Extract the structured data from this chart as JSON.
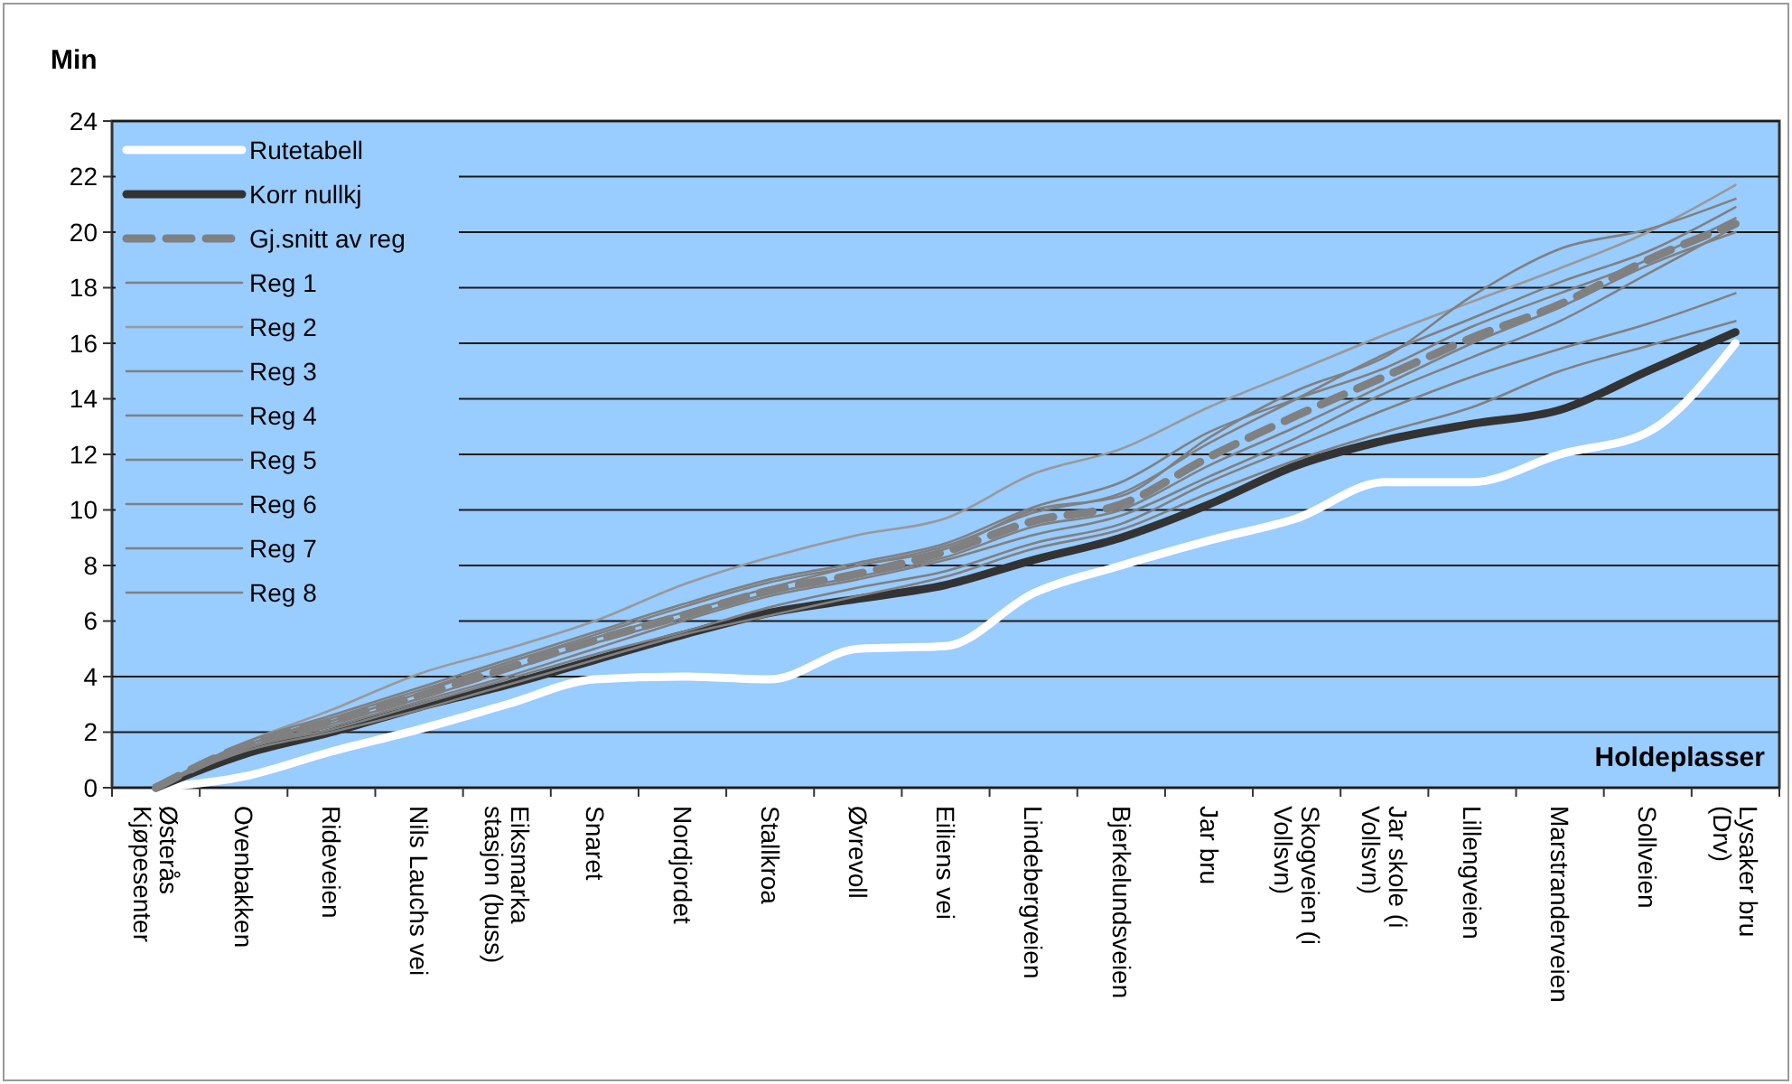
{
  "chart_data": {
    "type": "line",
    "ylabel": "Min",
    "xlabel": "Holdeplasser",
    "categories": [
      "Østerås\nKjøpesenter",
      "Ovenbakken",
      "Rideveien",
      "Nils Lauchs vei",
      "Eiksmarka\nstasjon (buss)",
      "Snaret",
      "Nordjordet",
      "Stallkroa",
      "Øvrevoll",
      "Eiliens vei",
      "Lindebergveien",
      "Bjerkelundsveien",
      "Jar bru",
      "Skogveien (i\nVollsvn)",
      "Jar skole (i\nVollsvn)",
      "Lillengveien",
      "Marstranderveien",
      "Sollveien",
      "Lysaker bru\n(Drv)"
    ],
    "series": [
      {
        "name": "Rutetabell",
        "color": "#ffffff",
        "values": [
          0,
          0.4,
          1.3,
          2.1,
          3,
          3.9,
          4,
          3.9,
          5,
          5.1,
          7,
          8,
          8.9,
          9.7,
          11,
          11,
          12,
          12.8,
          16
        ]
      },
      {
        "name": "Korr nullkj",
        "color": "#333333",
        "values": [
          0,
          1.2,
          2,
          2.9,
          3.7,
          4.6,
          5.5,
          6.3,
          6.8,
          7.3,
          8.2,
          9,
          10.2,
          11.6,
          12.5,
          13.1,
          13.6,
          15,
          16.4
        ]
      },
      {
        "name": "Gj.snitt av reg",
        "color": "#808080",
        "line_style": "dashed",
        "values": [
          0,
          1.5,
          2.4,
          3.3,
          4.3,
          5.3,
          6.2,
          7.1,
          7.7,
          8.5,
          9.6,
          10.2,
          11.9,
          13.4,
          14.8,
          16.2,
          17.4,
          19,
          20.3
        ]
      },
      {
        "name": "Reg 1",
        "color": "#808080",
        "values": [
          0,
          1.4,
          2.3,
          3.2,
          4.2,
          5.2,
          6.1,
          7,
          7.6,
          8.3,
          9.4,
          10,
          11.6,
          13,
          14.5,
          16,
          17.3,
          18.8,
          20
        ]
      },
      {
        "name": "Reg 2",
        "color": "#999999",
        "values": [
          0,
          1.6,
          2.8,
          4.1,
          5,
          6,
          7.3,
          8.3,
          9.1,
          9.7,
          11.3,
          12.2,
          13.7,
          15,
          16.3,
          17.5,
          18.7,
          20,
          21.7
        ]
      },
      {
        "name": "Reg 3",
        "color": "#808080",
        "values": [
          0,
          1.5,
          2.4,
          3.4,
          4.5,
          5.4,
          6.3,
          7.2,
          8,
          8.6,
          10,
          10.5,
          12.6,
          14.3,
          15.5,
          17.7,
          19.4,
          20.1,
          21.2
        ]
      },
      {
        "name": "Reg 4",
        "color": "#808080",
        "values": [
          0,
          1.4,
          2.1,
          3,
          3.9,
          4.8,
          5.6,
          6.5,
          7.2,
          7.8,
          8.8,
          9.5,
          11,
          12.3,
          13.6,
          14.8,
          15.8,
          16.7,
          17.8
        ]
      },
      {
        "name": "Reg 5",
        "color": "#808080",
        "values": [
          0,
          1.3,
          2,
          2.8,
          3.7,
          4.6,
          5.5,
          6.2,
          6.9,
          7.6,
          8.6,
          9.3,
          10.6,
          11.8,
          12.8,
          13.7,
          15,
          15.9,
          16.8
        ]
      },
      {
        "name": "Reg 6",
        "color": "#808080",
        "values": [
          0,
          1.5,
          2.5,
          3.5,
          4.5,
          5.5,
          6.5,
          7.4,
          8,
          8.7,
          9.9,
          10.6,
          12.4,
          14,
          15.6,
          16.9,
          18.2,
          19.3,
          20.9
        ]
      },
      {
        "name": "Reg 7",
        "color": "#808080",
        "values": [
          0,
          1.6,
          2.6,
          3.6,
          4.6,
          5.6,
          6.6,
          7.5,
          8.1,
          8.8,
          10.1,
          11,
          12.8,
          14,
          15.1,
          16.6,
          17.8,
          19,
          20.5
        ]
      },
      {
        "name": "Reg 8",
        "color": "#808080",
        "values": [
          0,
          1.4,
          2.2,
          3.1,
          4,
          5,
          6,
          6.9,
          7.5,
          8.2,
          9.1,
          9.8,
          11.2,
          12.6,
          14.2,
          15.5,
          16.8,
          18.5,
          20.2
        ]
      }
    ],
    "ylim": [
      0,
      24
    ],
    "yticks": [
      0,
      2,
      4,
      6,
      8,
      10,
      12,
      14,
      16,
      18,
      20,
      22,
      24
    ],
    "grid": "y",
    "legend": "top left"
  }
}
